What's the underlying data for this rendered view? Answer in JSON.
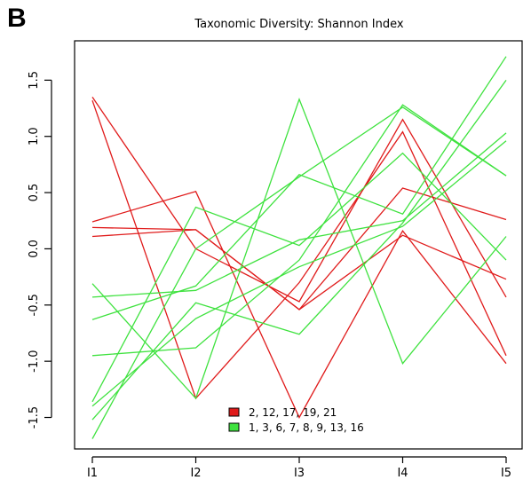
{
  "panel_label": "B",
  "chart_data": {
    "type": "line",
    "title": "Taxonomic Diversity: Shannon Index",
    "xlabel": "",
    "ylabel": "",
    "categories": [
      "I1",
      "I2",
      "I3",
      "I4",
      "I5"
    ],
    "ylim": [
      -1.78,
      1.85
    ],
    "yticks": [
      -1.5,
      -1.0,
      -0.5,
      0.0,
      0.5,
      1.0,
      1.5
    ],
    "ytick_labels": [
      "-1.5",
      "-1.0",
      "-0.5",
      "0.0",
      "0.5",
      "1.0",
      "1.5"
    ],
    "grid": false,
    "legend_position": "bottom-center",
    "colors": {
      "red": "#e01b1b",
      "green": "#3fe23f"
    },
    "legend": [
      {
        "label": "2, 12, 17, 19, 21",
        "color": "#e01b1b"
      },
      {
        "label": "1, 3, 6, 7, 8, 9, 13, 16",
        "color": "#3fe23f"
      }
    ],
    "series": [
      {
        "group": "red",
        "values": [
          1.35,
          0.0,
          -0.47,
          1.15,
          -0.43
        ]
      },
      {
        "group": "red",
        "values": [
          1.32,
          -1.33,
          -0.3,
          1.04,
          -0.95
        ]
      },
      {
        "group": "red",
        "values": [
          0.24,
          0.51,
          -1.5,
          0.16,
          -1.02
        ]
      },
      {
        "group": "red",
        "values": [
          0.19,
          0.17,
          -0.54,
          0.54,
          0.26
        ]
      },
      {
        "group": "red",
        "values": [
          0.11,
          0.17,
          -0.54,
          0.12,
          -0.27
        ]
      },
      {
        "group": "green",
        "values": [
          -0.31,
          -1.33,
          1.33,
          -1.02,
          0.11
        ]
      },
      {
        "group": "green",
        "values": [
          -0.43,
          -0.37,
          0.08,
          0.25,
          1.03
        ]
      },
      {
        "group": "green",
        "values": [
          -0.63,
          -0.33,
          0.66,
          0.31,
          1.71
        ]
      },
      {
        "group": "green",
        "values": [
          -0.95,
          -0.88,
          -0.1,
          1.28,
          0.65
        ]
      },
      {
        "group": "green",
        "values": [
          -1.36,
          0.37,
          0.03,
          0.85,
          -0.1
        ]
      },
      {
        "group": "green",
        "values": [
          -1.52,
          -0.48,
          -0.76,
          0.23,
          1.5
        ]
      },
      {
        "group": "green",
        "values": [
          -1.69,
          0.0,
          0.64,
          1.26,
          0.65
        ]
      },
      {
        "group": "green",
        "values": [
          -1.4,
          -0.62,
          -0.16,
          0.2,
          0.96
        ]
      }
    ]
  }
}
